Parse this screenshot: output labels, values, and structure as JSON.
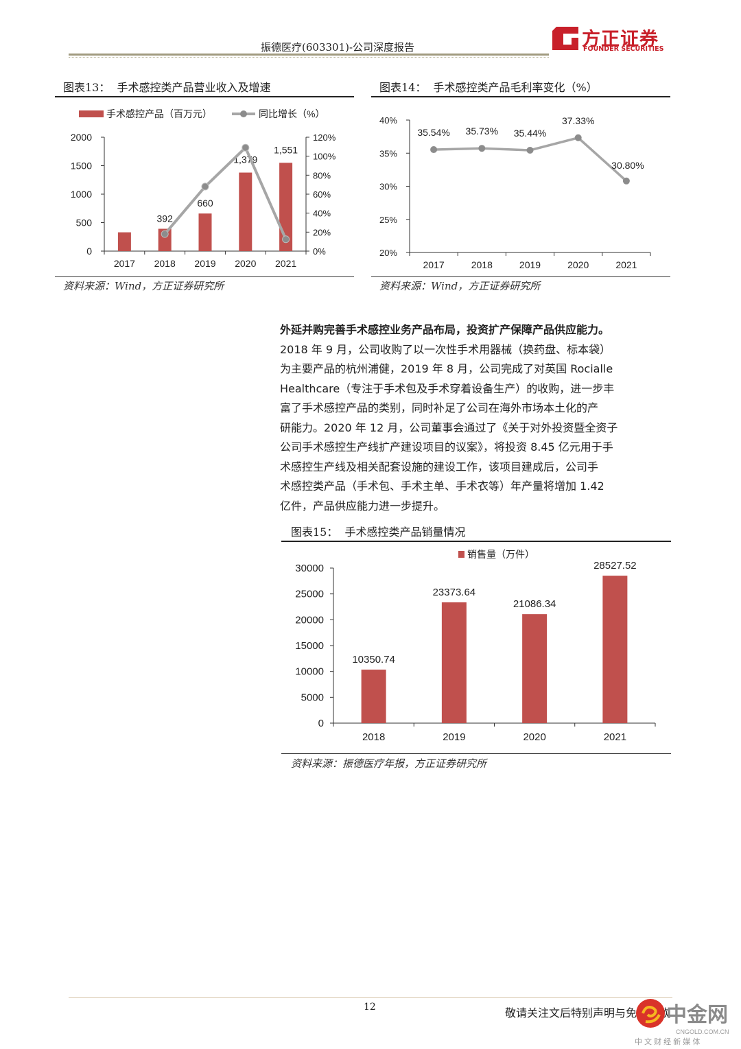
{
  "header": {
    "title": "振德医疗(603301)-公司深度报告",
    "logo_cn": "方正证券",
    "logo_en": "FOUNDER SECURITIES",
    "brand_color": "#c8202a"
  },
  "figures": [
    {
      "label": "图表13：",
      "title": "手术感控类产品营业收入及增速",
      "source": "资料来源：Wind，方正证券研究所"
    },
    {
      "label": "图表14：",
      "title": "手术感控类产品毛利率变化（%）",
      "source": "资料来源：Wind，方正证券研究所"
    },
    {
      "label": "图表15：",
      "title": "手术感控类产品销量情况",
      "source": "资料来源：振德医疗年报，方正证券研究所"
    }
  ],
  "chart_data": [
    {
      "type": "bar+line",
      "categories": [
        "2017",
        "2018",
        "2019",
        "2020",
        "2021"
      ],
      "series": [
        {
          "name": "手术感控产品（百万元）",
          "type": "bar",
          "axis": "left",
          "values": [
            330,
            392,
            660,
            1379,
            1551
          ],
          "data_labels": [
            "",
            "392",
            "660",
            "1,379",
            "1,551"
          ],
          "color": "#c0504d"
        },
        {
          "name": "同比增长（%）",
          "type": "line",
          "axis": "right",
          "values": [
            null,
            18,
            68,
            109,
            12.5
          ],
          "color": "#a6a6a6"
        }
      ],
      "y_left": {
        "range": [
          0,
          2000
        ],
        "ticks": [
          "0",
          "500",
          "1000",
          "1500",
          "2000"
        ],
        "tick_values": [
          0,
          500,
          1000,
          1500,
          2000
        ]
      },
      "y_right": {
        "range": [
          0,
          120
        ],
        "ticks": [
          "0%",
          "20%",
          "40%",
          "60%",
          "80%",
          "100%",
          "120%"
        ],
        "tick_values": [
          0,
          20,
          40,
          60,
          80,
          100,
          120
        ]
      },
      "legend": "top",
      "grid": false
    },
    {
      "type": "line",
      "categories": [
        "2017",
        "2018",
        "2019",
        "2020",
        "2021"
      ],
      "series": [
        {
          "values": [
            35.54,
            35.73,
            35.44,
            37.33,
            30.8
          ],
          "data_labels": [
            "35.54%",
            "35.73%",
            "35.44%",
            "37.33%",
            "30.80%"
          ],
          "color": "#a6a6a6"
        }
      ],
      "y": {
        "range": [
          20,
          40
        ],
        "ticks": [
          "20%",
          "25%",
          "30%",
          "35%",
          "40%"
        ],
        "tick_values": [
          20,
          25,
          30,
          35,
          40
        ]
      },
      "grid": false
    },
    {
      "type": "bar",
      "categories": [
        "2018",
        "2019",
        "2020",
        "2021"
      ],
      "series": [
        {
          "name": "销售量（万件）",
          "values": [
            10350.74,
            23373.64,
            21086.34,
            28527.52
          ],
          "data_labels": [
            "10350.74",
            "23373.64",
            "21086.34",
            "28527.52"
          ],
          "color": "#c0504d"
        }
      ],
      "y": {
        "range": [
          0,
          30000
        ],
        "ticks": [
          "0",
          "5000",
          "10000",
          "15000",
          "20000",
          "25000",
          "30000"
        ],
        "tick_values": [
          0,
          5000,
          10000,
          15000,
          20000,
          25000,
          30000
        ]
      },
      "legend": "top",
      "grid": false
    }
  ],
  "body": {
    "lines": [
      "外延并购完善手术感控业务产品布局，投资扩产保障产品供应能力。",
      "2018 年 9 月，公司收购了以一次性手术用器械（换药盘、标本袋）",
      "为主要产品的杭州浦健，2019 年 8 月，公司完成了对英国 Rocialle",
      "Healthcare（专注于手术包及手术穿着设备生产）的收购，进一步丰",
      "富了手术感控产品的类别，同时补足了公司在海外市场本土化的产",
      "研能力。2020 年 12 月，公司董事会通过了《关于对外投资暨全资子",
      "公司手术感控生产线扩产建设项目的议案》，将投资 8.45 亿元用于手",
      "术感控生产线及相关配套设施的建设工作，该项目建成后，公司手",
      "术感控类产品（手术包、手术主单、手术衣等）年产量将增加 1.42",
      "亿件，产品供应能力进一步提升。"
    ]
  },
  "footer": {
    "page": "12",
    "disclaimer": "敬请关注文后特别声明与免责条款",
    "watermark_cn": "中金网",
    "watermark_url": "CNGOLD.COM.CN",
    "watermark_tag": "中 文 财 经 新 媒 体"
  }
}
